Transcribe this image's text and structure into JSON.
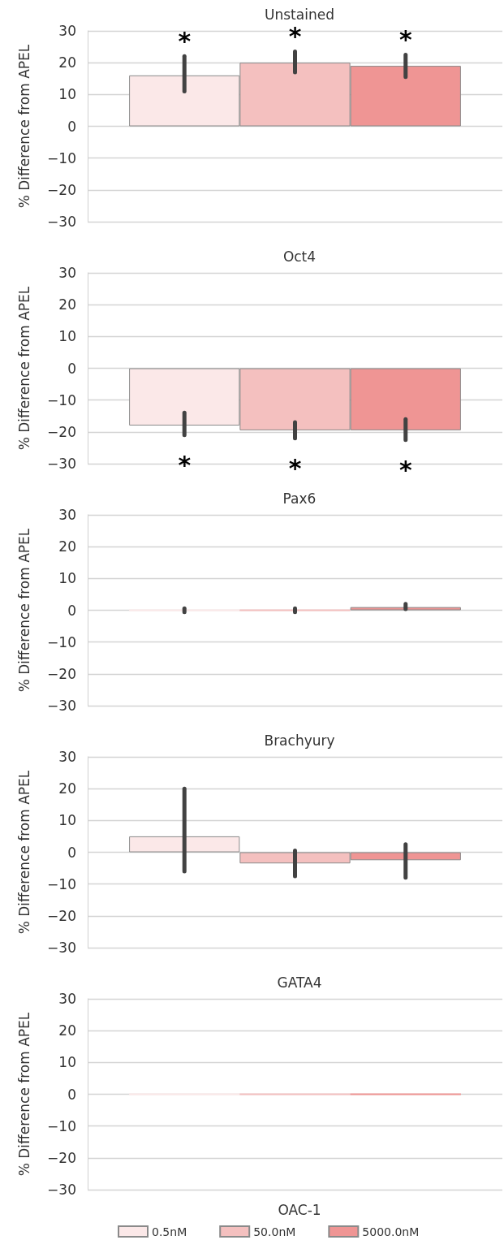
{
  "chart_data": [
    {
      "type": "bar",
      "title": "Unstained",
      "ylabel": "% Difference from APEL",
      "categories": [
        null
      ],
      "ylim": [
        -30,
        30
      ],
      "yticks": [
        -30,
        -20,
        -10,
        0,
        10,
        20,
        30
      ],
      "grid": "y",
      "legend": false,
      "series": [
        {
          "color": "#fbe8e8",
          "values": [
            16
          ],
          "errors": [
            [
              11,
              22
            ]
          ]
        },
        {
          "color": "#f4c0bf",
          "values": [
            20
          ],
          "errors": [
            [
              17,
              23.5
            ]
          ]
        },
        {
          "color": "#ef9594",
          "values": [
            19
          ],
          "errors": [
            [
              15.5,
              22.5
            ]
          ]
        }
      ],
      "annotations": [
        "*",
        "*",
        "*"
      ]
    },
    {
      "type": "bar",
      "title": "Oct4",
      "ylabel": "% Difference from APEL",
      "categories": [
        null
      ],
      "ylim": [
        -30,
        30
      ],
      "yticks": [
        -30,
        -20,
        -10,
        0,
        10,
        20,
        30
      ],
      "grid": "y",
      "legend": false,
      "series": [
        {
          "color": "#fbe8e8",
          "values": [
            -18
          ],
          "errors": [
            [
              -21,
              -14
            ]
          ]
        },
        {
          "color": "#f4c0bf",
          "values": [
            -19.5
          ],
          "errors": [
            [
              -22,
              -17
            ]
          ]
        },
        {
          "color": "#ef9594",
          "values": [
            -19.5
          ],
          "errors": [
            [
              -22.5,
              -16
            ]
          ]
        }
      ],
      "annotations": [
        "*",
        "*",
        "*"
      ]
    },
    {
      "type": "bar",
      "title": "Pax6",
      "ylabel": "% Difference from APEL",
      "categories": [
        null
      ],
      "ylim": [
        -30,
        30
      ],
      "yticks": [
        -30,
        -20,
        -10,
        0,
        10,
        20,
        30
      ],
      "grid": "y",
      "legend": false,
      "series": [
        {
          "color": "#fbe8e8",
          "values": [
            0
          ],
          "errors": [
            [
              -0.6,
              0.6
            ]
          ]
        },
        {
          "color": "#f4c0bf",
          "values": [
            0
          ],
          "errors": [
            [
              -0.6,
              0.6
            ]
          ]
        },
        {
          "color": "#ef9594",
          "values": [
            1
          ],
          "errors": [
            [
              0.4,
              2
            ]
          ]
        }
      ]
    },
    {
      "type": "bar",
      "title": "Brachyury",
      "ylabel": "% Difference from APEL",
      "categories": [
        null
      ],
      "ylim": [
        -30,
        30
      ],
      "yticks": [
        -30,
        -20,
        -10,
        0,
        10,
        20,
        30
      ],
      "grid": "y",
      "legend": false,
      "series": [
        {
          "color": "#fbe8e8",
          "values": [
            5
          ],
          "errors": [
            [
              -6,
              20
            ]
          ]
        },
        {
          "color": "#f4c0bf",
          "values": [
            -3.5
          ],
          "errors": [
            [
              -7.5,
              0.5
            ]
          ]
        },
        {
          "color": "#ef9594",
          "values": [
            -2.5
          ],
          "errors": [
            [
              -8,
              2.5
            ]
          ]
        }
      ]
    },
    {
      "type": "bar",
      "title": "GATA4",
      "ylabel": "% Difference from APEL",
      "legend_title": "OAC-1",
      "categories": [
        null
      ],
      "ylim": [
        -30,
        30
      ],
      "yticks": [
        -30,
        -20,
        -10,
        0,
        10,
        20,
        30
      ],
      "grid": "y",
      "legend": "bottom",
      "series": [
        {
          "name": "0.5nM",
          "color": "#fbe8e8",
          "values": [
            0
          ]
        },
        {
          "name": "50.0nM",
          "color": "#f4c0bf",
          "values": [
            0
          ]
        },
        {
          "name": "5000.0nM",
          "color": "#ef9594",
          "values": [
            0
          ]
        }
      ]
    }
  ]
}
